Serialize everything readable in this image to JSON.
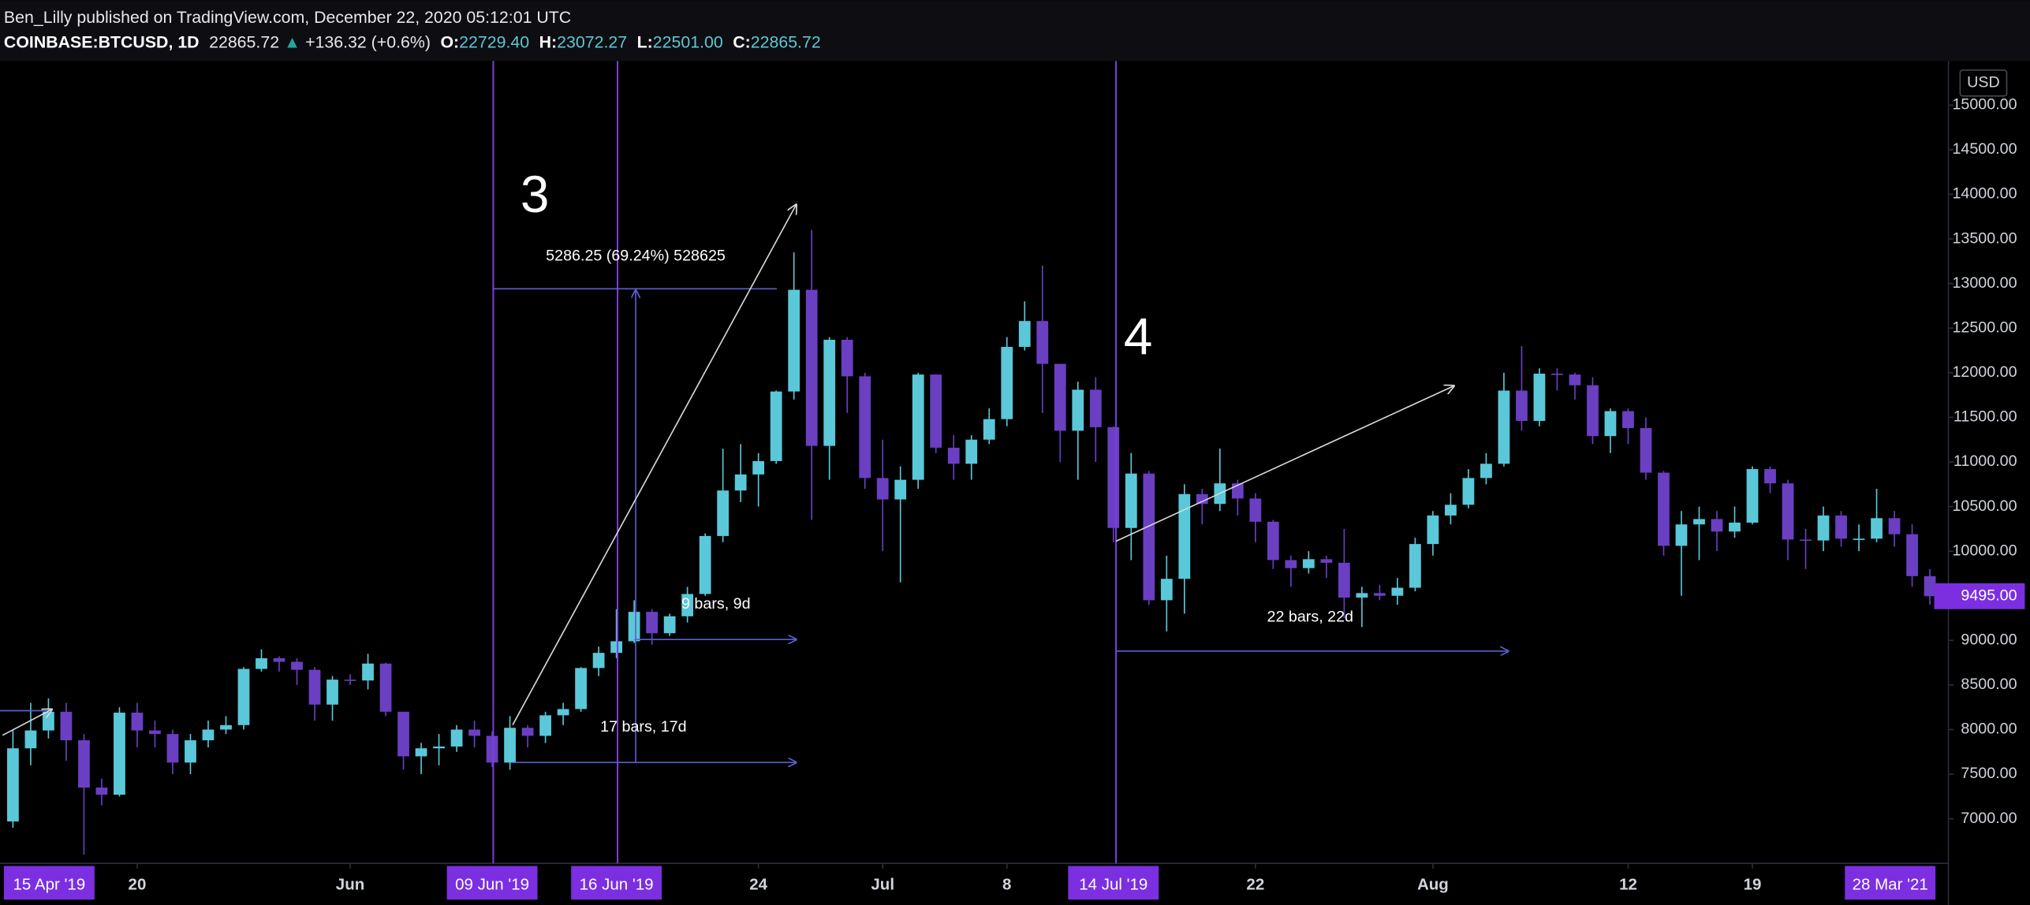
{
  "header": {
    "publisher": "Ben_Lilly published on TradingView.com, December 22, 2020 05:12:01 UTC",
    "symbol": "COINBASE:BTCUSD, 1D",
    "last": "22865.72",
    "change_arrow": "▲",
    "change": "+136.32 (+0.6%)",
    "open_label": "O:",
    "open": "22729.40",
    "high_label": "H:",
    "high": "23072.27",
    "low_label": "L:",
    "low": "22501.00",
    "close_label": "C:",
    "close": "22865.72"
  },
  "chart_data": {
    "type": "candlestick",
    "x": [
      "2019-05-13",
      "2019-05-14",
      "2019-05-15",
      "2019-05-16",
      "2019-05-17",
      "2019-05-18",
      "2019-05-19",
      "2019-05-20",
      "2019-05-21",
      "2019-05-22",
      "2019-05-23",
      "2019-05-24",
      "2019-05-25",
      "2019-05-26",
      "2019-05-27",
      "2019-05-28",
      "2019-05-29",
      "2019-05-30",
      "2019-05-31",
      "2019-06-01",
      "2019-06-02",
      "2019-06-03",
      "2019-06-04",
      "2019-06-05",
      "2019-06-06",
      "2019-06-07",
      "2019-06-08",
      "2019-06-09",
      "2019-06-10",
      "2019-06-11",
      "2019-06-12",
      "2019-06-13",
      "2019-06-14",
      "2019-06-15",
      "2019-06-16",
      "2019-06-17",
      "2019-06-18",
      "2019-06-19",
      "2019-06-20",
      "2019-06-21",
      "2019-06-22",
      "2019-06-23",
      "2019-06-24",
      "2019-06-25",
      "2019-06-26",
      "2019-06-27",
      "2019-06-28",
      "2019-06-29",
      "2019-06-30",
      "2019-07-01",
      "2019-07-02",
      "2019-07-03",
      "2019-07-04",
      "2019-07-05",
      "2019-07-06",
      "2019-07-07",
      "2019-07-08",
      "2019-07-09",
      "2019-07-10",
      "2019-07-11",
      "2019-07-12",
      "2019-07-13",
      "2019-07-14",
      "2019-07-15",
      "2019-07-16",
      "2019-07-17",
      "2019-07-18",
      "2019-07-19",
      "2019-07-20",
      "2019-07-21",
      "2019-07-22",
      "2019-07-23",
      "2019-07-24",
      "2019-07-25",
      "2019-07-26",
      "2019-07-27",
      "2019-07-28",
      "2019-07-29",
      "2019-07-30",
      "2019-07-31",
      "2019-08-01",
      "2019-08-02",
      "2019-08-03",
      "2019-08-04",
      "2019-08-05",
      "2019-08-06",
      "2019-08-07",
      "2019-08-08",
      "2019-08-09",
      "2019-08-10",
      "2019-08-11",
      "2019-08-12",
      "2019-08-13",
      "2019-08-14",
      "2019-08-15",
      "2019-08-16",
      "2019-08-17",
      "2019-08-18",
      "2019-08-19",
      "2019-08-20",
      "2019-08-21",
      "2019-08-22",
      "2019-08-23",
      "2019-08-24",
      "2019-08-25",
      "2019-08-26",
      "2019-08-27",
      "2019-08-28",
      "2019-08-29"
    ],
    "open": [
      6970,
      7790,
      7990,
      8200,
      7880,
      7350,
      7270,
      8190,
      7990,
      7950,
      7630,
      7880,
      8000,
      8050,
      8680,
      8800,
      8760,
      8670,
      8280,
      8560,
      8550,
      8740,
      8200,
      7700,
      7790,
      7810,
      8000,
      7930,
      7630,
      8020,
      7930,
      8160,
      8230,
      8690,
      8860,
      8990,
      9320,
      9080,
      9270,
      9520,
      10170,
      10680,
      10860,
      11010,
      11790,
      12930,
      11180,
      12370,
      11960,
      10820,
      10580,
      10800,
      11980,
      11160,
      10980,
      11250,
      11480,
      12290,
      12580,
      12100,
      11350,
      11810,
      11390,
      10260,
      10870,
      9450,
      9690,
      10640,
      10530,
      10760,
      10590,
      10330,
      9900,
      9810,
      9910,
      9870,
      9480,
      9530,
      9500,
      9590,
      10080,
      10400,
      10520,
      10820,
      10980,
      11800,
      11460,
      11990,
      11980,
      11860,
      11290,
      11570,
      11380,
      10880,
      10060,
      10300,
      10360,
      10220,
      10320,
      10920,
      10760,
      10130,
      10120,
      10400,
      10140,
      10140,
      10370,
      10190,
      9720
    ],
    "high": [
      8000,
      8300,
      8350,
      8300,
      7950,
      7450,
      8250,
      8300,
      8100,
      8000,
      7950,
      8100,
      8150,
      8700,
      8900,
      8820,
      8800,
      8700,
      8600,
      8620,
      8850,
      8750,
      8200,
      7850,
      7950,
      8050,
      8100,
      7980,
      8150,
      8050,
      8200,
      8300,
      8700,
      8930,
      9350,
      9450,
      9350,
      9300,
      9600,
      10200,
      11150,
      11200,
      11100,
      11800,
      13350,
      13600,
      12400,
      12400,
      12000,
      11250,
      10950,
      12000,
      11980,
      11300,
      11300,
      11600,
      12400,
      12800,
      13200,
      12100,
      11900,
      11950,
      11400,
      11100,
      10900,
      9950,
      10750,
      10700,
      11150,
      10800,
      10650,
      10350,
      9950,
      10000,
      9950,
      10250,
      9600,
      9620,
      9700,
      10150,
      10450,
      10650,
      10920,
      11100,
      12000,
      12300,
      12050,
      12050,
      12000,
      11950,
      11600,
      11600,
      11500,
      10900,
      10450,
      10500,
      10450,
      10500,
      10950,
      10950,
      10800,
      10250,
      10500,
      10450,
      10300,
      10700,
      10450,
      10300,
      9800
    ],
    "low": [
      6900,
      7600,
      7900,
      7650,
      6600,
      7150,
      7250,
      7800,
      7800,
      7500,
      7500,
      7800,
      7950,
      8000,
      8650,
      8650,
      8500,
      8100,
      8100,
      8500,
      8450,
      8150,
      7550,
      7500,
      7600,
      7750,
      7800,
      7580,
      7550,
      7800,
      7850,
      8050,
      8200,
      8600,
      8800,
      8970,
      8950,
      9050,
      9200,
      9500,
      10100,
      10550,
      10500,
      10980,
      11700,
      10350,
      10800,
      11550,
      10700,
      10000,
      9650,
      10700,
      11100,
      10800,
      10800,
      11200,
      11400,
      12250,
      11550,
      11000,
      10800,
      11000,
      10100,
      9900,
      9400,
      9100,
      9300,
      10300,
      10450,
      10400,
      10100,
      9800,
      9600,
      9750,
      9700,
      9250,
      9150,
      9450,
      9400,
      9550,
      9950,
      10300,
      10480,
      10750,
      10950,
      11350,
      11400,
      11800,
      11700,
      11200,
      11100,
      11200,
      10800,
      9950,
      9500,
      9900,
      10000,
      10150,
      10300,
      10650,
      9900,
      9800,
      10000,
      10050,
      10000,
      10100,
      10050,
      9600,
      9400
    ],
    "close": [
      7790,
      7990,
      8200,
      7880,
      7350,
      7270,
      8190,
      7990,
      7950,
      7630,
      7880,
      8000,
      8050,
      8680,
      8800,
      8760,
      8670,
      8280,
      8560,
      8550,
      8740,
      8200,
      7700,
      7790,
      7810,
      8000,
      7930,
      7630,
      8020,
      7930,
      8160,
      8230,
      8690,
      8860,
      8990,
      9320,
      9080,
      9270,
      9520,
      10170,
      10680,
      10860,
      11010,
      11790,
      12930,
      11180,
      12370,
      11960,
      10820,
      10580,
      10800,
      11980,
      11160,
      10980,
      11250,
      11480,
      12290,
      12580,
      12100,
      11350,
      11810,
      11390,
      10260,
      10870,
      9450,
      9690,
      10640,
      10530,
      10760,
      10590,
      10330,
      9900,
      9810,
      9910,
      9870,
      9480,
      9530,
      9500,
      9590,
      10080,
      10400,
      10520,
      10820,
      10980,
      11800,
      11460,
      11990,
      11980,
      11860,
      11290,
      11570,
      11380,
      10880,
      10060,
      10300,
      10360,
      10220,
      10320,
      10920,
      10760,
      10130,
      10120,
      10400,
      10140,
      10140,
      10370,
      10190,
      9720,
      9495
    ],
    "up_color": "#5ac8d8",
    "down_color": "#6a3fc2",
    "ylim": [
      6500,
      15480
    ],
    "yticks": [
      {
        "value": 7000,
        "label": "7000.00"
      },
      {
        "value": 7500,
        "label": "7500.00"
      },
      {
        "value": 8000,
        "label": "8000.00"
      },
      {
        "value": 8500,
        "label": "8500.00"
      },
      {
        "value": 9000,
        "label": "9000.00"
      },
      {
        "value": 9500,
        "label": "9500.00"
      },
      {
        "value": 10000,
        "label": "10000.00"
      },
      {
        "value": 10500,
        "label": "10500.00"
      },
      {
        "value": 11000,
        "label": "11000.00"
      },
      {
        "value": 11500,
        "label": "11500.00"
      },
      {
        "value": 12000,
        "label": "12000.00"
      },
      {
        "value": 12500,
        "label": "12500.00"
      },
      {
        "value": 13000,
        "label": "13000.00"
      },
      {
        "value": 13500,
        "label": "13500.00"
      },
      {
        "value": 14000,
        "label": "14000.00"
      },
      {
        "value": 14500,
        "label": "14500.00"
      },
      {
        "value": 15000,
        "label": "15000.00"
      }
    ],
    "xticks": [
      {
        "value": "2019-04-15",
        "label": "15 Apr '19",
        "highlight": true
      },
      {
        "value": "2019-05-20",
        "label": "20"
      },
      {
        "value": "2019-06-01",
        "label": "Jun"
      },
      {
        "value": "2019-06-09",
        "label": "09 Jun '19",
        "highlight": true
      },
      {
        "value": "2019-06-16",
        "label": "16 Jun '19",
        "highlight": true
      },
      {
        "value": "2019-06-24",
        "label": "24"
      },
      {
        "value": "2019-07-01",
        "label": "Jul"
      },
      {
        "value": "2019-07-08",
        "label": "8"
      },
      {
        "value": "2019-07-14",
        "label": "14 Jul '19",
        "highlight": true
      },
      {
        "value": "2019-07-22",
        "label": "22"
      },
      {
        "value": "2019-08-01",
        "label": "Aug"
      },
      {
        "value": "2019-08-12",
        "label": "12"
      },
      {
        "value": "2019-08-19",
        "label": "19"
      },
      {
        "value": "2021-03-28",
        "label": "28 Mar '21",
        "highlight": true
      }
    ],
    "axis_unit": "USD",
    "last_price": {
      "value": 9495,
      "label": "9495.00"
    },
    "highlight_color": "#7b2fe0",
    "annotations": [
      "3",
      "4",
      "5286.25 (69.24%) 528625",
      "9 bars, 9d",
      "17 bars, 17d",
      "22 bars, 22d"
    ]
  }
}
